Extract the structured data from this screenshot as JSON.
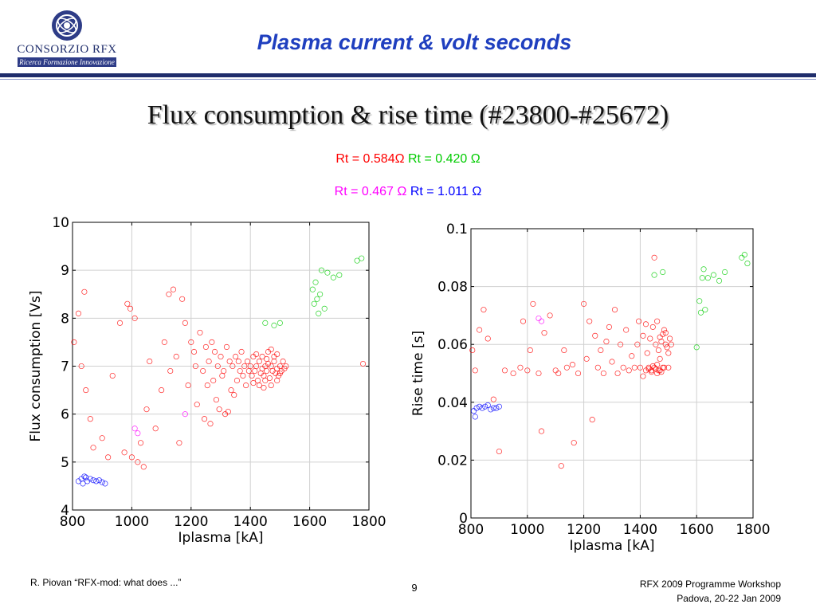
{
  "header": {
    "logo_name": "CONSORZIO RFX",
    "logo_tagline": "Ricerca Formazione Innovazione",
    "title": "Plasma current & volt seconds"
  },
  "slide_title": "Flux consumption & rise time (#23800-#25672)",
  "legend": {
    "items": [
      {
        "text": "Rt = 0.584Ω",
        "color": "#ff0000"
      },
      {
        "text": "Rt = 0.420 Ω",
        "color": "#00cc00"
      },
      {
        "text": "Rt = 0.467 Ω",
        "color": "#ff00ff"
      },
      {
        "text": "Rt = 1.011 Ω",
        "color": "#0000ff"
      }
    ]
  },
  "chart_data": [
    {
      "type": "scatter",
      "xlabel": "Iplasma [kA]",
      "ylabel": "Flux consumption [Vs]",
      "xlim": [
        800,
        1800
      ],
      "ylim": [
        4,
        10
      ],
      "xticks": [
        "800",
        "1000",
        "1200",
        "1400",
        "1600",
        "1800"
      ],
      "yticks": [
        "4",
        "5",
        "6",
        "7",
        "8",
        "9",
        "10"
      ],
      "grid": true,
      "series": [
        {
          "color": "#ff0000",
          "points": [
            [
              820,
              8.1
            ],
            [
              840,
              8.55
            ],
            [
              830,
              7.0
            ],
            [
              845,
              6.5
            ],
            [
              860,
              5.9
            ],
            [
              870,
              5.3
            ],
            [
              900,
              5.5
            ],
            [
              920,
              5.1
            ],
            [
              935,
              6.8
            ],
            [
              960,
              7.9
            ],
            [
              975,
              5.2
            ],
            [
              985,
              8.3
            ],
            [
              995,
              8.2
            ],
            [
              1000,
              5.1
            ],
            [
              1010,
              8.0
            ],
            [
              1020,
              5.0
            ],
            [
              1030,
              5.4
            ],
            [
              1040,
              4.9
            ],
            [
              1050,
              6.1
            ],
            [
              1060,
              7.1
            ],
            [
              1080,
              5.7
            ],
            [
              1100,
              6.5
            ],
            [
              1110,
              7.5
            ],
            [
              1125,
              8.5
            ],
            [
              1130,
              6.9
            ],
            [
              1140,
              8.6
            ],
            [
              1150,
              7.2
            ],
            [
              1160,
              5.4
            ],
            [
              1170,
              8.4
            ],
            [
              1180,
              7.9
            ],
            [
              1190,
              6.6
            ],
            [
              1200,
              7.5
            ],
            [
              1210,
              7.3
            ],
            [
              1215,
              7.0
            ],
            [
              1220,
              6.2
            ],
            [
              1230,
              7.7
            ],
            [
              1240,
              6.9
            ],
            [
              1245,
              5.9
            ],
            [
              1250,
              7.4
            ],
            [
              1255,
              6.6
            ],
            [
              1260,
              7.1
            ],
            [
              1265,
              5.8
            ],
            [
              1270,
              7.5
            ],
            [
              1275,
              6.7
            ],
            [
              1280,
              7.3
            ],
            [
              1285,
              6.3
            ],
            [
              1290,
              7.0
            ],
            [
              1295,
              6.1
            ],
            [
              1300,
              7.2
            ],
            [
              1305,
              6.8
            ],
            [
              1310,
              6.9
            ],
            [
              1315,
              6.0
            ],
            [
              1320,
              7.4
            ],
            [
              1325,
              6.05
            ],
            [
              1330,
              7.1
            ],
            [
              1335,
              6.5
            ],
            [
              1340,
              7.0
            ],
            [
              1345,
              6.4
            ],
            [
              1350,
              7.2
            ],
            [
              1355,
              6.7
            ],
            [
              1360,
              7.1
            ],
            [
              1365,
              6.9
            ],
            [
              1370,
              7.3
            ],
            [
              1375,
              6.8
            ],
            [
              1380,
              7.0
            ],
            [
              1385,
              6.6
            ],
            [
              1390,
              7.1
            ],
            [
              1395,
              6.9
            ],
            [
              1400,
              7.0
            ],
            [
              1405,
              6.8
            ],
            [
              1410,
              7.2
            ],
            [
              1415,
              6.9
            ],
            [
              1420,
              7.0
            ],
            [
              1425,
              6.7
            ],
            [
              1430,
              7.1
            ],
            [
              1435,
              6.85
            ],
            [
              1440,
              6.95
            ],
            [
              1445,
              6.8
            ],
            [
              1450,
              7.0
            ],
            [
              1455,
              6.9
            ],
            [
              1460,
              7.05
            ],
            [
              1465,
              6.75
            ],
            [
              1470,
              7.0
            ],
            [
              1475,
              6.9
            ],
            [
              1480,
              7.1
            ],
            [
              1485,
              6.85
            ],
            [
              1490,
              6.95
            ],
            [
              1495,
              6.8
            ],
            [
              1500,
              7.0
            ],
            [
              1505,
              6.9
            ],
            [
              1510,
              7.1
            ],
            [
              1515,
              6.95
            ],
            [
              1520,
              7.0
            ],
            [
              1440,
              7.2
            ],
            [
              1450,
              6.7
            ],
            [
              1460,
              7.3
            ],
            [
              1470,
              6.6
            ],
            [
              1480,
              7.2
            ],
            [
              1490,
              6.7
            ],
            [
              1500,
              6.85
            ],
            [
              1430,
              6.6
            ],
            [
              1420,
              7.25
            ],
            [
              1410,
              6.65
            ],
            [
              1470,
              7.35
            ],
            [
              1455,
              7.15
            ],
            [
              1445,
              6.55
            ],
            [
              1490,
              7.25
            ],
            [
              1780,
              7.05
            ],
            [
              805,
              7.5
            ]
          ]
        },
        {
          "color": "#00cc00",
          "points": [
            [
              1610,
              8.6
            ],
            [
              1615,
              8.3
            ],
            [
              1620,
              8.75
            ],
            [
              1625,
              8.4
            ],
            [
              1630,
              8.1
            ],
            [
              1635,
              8.5
            ],
            [
              1640,
              9.0
            ],
            [
              1650,
              8.2
            ],
            [
              1660,
              8.95
            ],
            [
              1680,
              8.85
            ],
            [
              1700,
              8.9
            ],
            [
              1760,
              9.2
            ],
            [
              1775,
              9.25
            ],
            [
              1450,
              7.9
            ],
            [
              1480,
              7.85
            ],
            [
              1500,
              7.9
            ]
          ]
        },
        {
          "color": "#ff00ff",
          "points": [
            [
              1180,
              6.0
            ],
            [
              1010,
              5.7
            ],
            [
              1020,
              5.6
            ]
          ]
        },
        {
          "color": "#0000ff",
          "points": [
            [
              820,
              4.6
            ],
            [
              830,
              4.65
            ],
            [
              840,
              4.7
            ],
            [
              850,
              4.6
            ],
            [
              860,
              4.65
            ],
            [
              870,
              4.62
            ],
            [
              880,
              4.6
            ],
            [
              890,
              4.62
            ],
            [
              900,
              4.58
            ],
            [
              910,
              4.55
            ],
            [
              835,
              4.55
            ],
            [
              845,
              4.68
            ]
          ]
        }
      ]
    },
    {
      "type": "scatter",
      "xlabel": "Iplasma [kA]",
      "ylabel": "Rise time [s]",
      "xlim": [
        800,
        1800
      ],
      "ylim": [
        0,
        0.1
      ],
      "xticks": [
        "800",
        "1000",
        "1200",
        "1400",
        "1600",
        "1800"
      ],
      "yticks": [
        "0",
        "0.02",
        "0.04",
        "0.06",
        "0.08",
        "0.1"
      ],
      "grid": true,
      "series": [
        {
          "color": "#ff0000",
          "points": [
            [
              805,
              0.058
            ],
            [
              815,
              0.051
            ],
            [
              830,
              0.065
            ],
            [
              845,
              0.072
            ],
            [
              860,
              0.062
            ],
            [
              880,
              0.041
            ],
            [
              900,
              0.023
            ],
            [
              920,
              0.051
            ],
            [
              950,
              0.05
            ],
            [
              975,
              0.052
            ],
            [
              985,
              0.068
            ],
            [
              1000,
              0.051
            ],
            [
              1010,
              0.058
            ],
            [
              1020,
              0.074
            ],
            [
              1040,
              0.05
            ],
            [
              1050,
              0.03
            ],
            [
              1060,
              0.064
            ],
            [
              1080,
              0.07
            ],
            [
              1100,
              0.051
            ],
            [
              1110,
              0.05
            ],
            [
              1120,
              0.018
            ],
            [
              1130,
              0.058
            ],
            [
              1140,
              0.052
            ],
            [
              1160,
              0.053
            ],
            [
              1165,
              0.026
            ],
            [
              1180,
              0.05
            ],
            [
              1200,
              0.074
            ],
            [
              1210,
              0.055
            ],
            [
              1220,
              0.068
            ],
            [
              1230,
              0.034
            ],
            [
              1240,
              0.063
            ],
            [
              1250,
              0.052
            ],
            [
              1260,
              0.058
            ],
            [
              1270,
              0.05
            ],
            [
              1280,
              0.061
            ],
            [
              1290,
              0.066
            ],
            [
              1300,
              0.054
            ],
            [
              1310,
              0.072
            ],
            [
              1320,
              0.05
            ],
            [
              1330,
              0.06
            ],
            [
              1340,
              0.052
            ],
            [
              1350,
              0.065
            ],
            [
              1360,
              0.051
            ],
            [
              1370,
              0.056
            ],
            [
              1380,
              0.052
            ],
            [
              1390,
              0.06
            ],
            [
              1400,
              0.052
            ],
            [
              1410,
              0.063
            ],
            [
              1420,
              0.051
            ],
            [
              1425,
              0.057
            ],
            [
              1430,
              0.052
            ],
            [
              1435,
              0.062
            ],
            [
              1440,
              0.051
            ],
            [
              1445,
              0.066
            ],
            [
              1450,
              0.052
            ],
            [
              1455,
              0.06
            ],
            [
              1460,
              0.053
            ],
            [
              1465,
              0.058
            ],
            [
              1470,
              0.051
            ],
            [
              1475,
              0.061
            ],
            [
              1480,
              0.052
            ],
            [
              1485,
              0.065
            ],
            [
              1490,
              0.06
            ],
            [
              1495,
              0.059
            ],
            [
              1500,
              0.052
            ],
            [
              1505,
              0.062
            ],
            [
              1510,
              0.06
            ],
            [
              1450,
              0.09
            ],
            [
              1460,
              0.068
            ],
            [
              1470,
              0.055
            ],
            [
              1440,
              0.0505
            ],
            [
              1455,
              0.0515
            ],
            [
              1465,
              0.051
            ],
            [
              1475,
              0.0505
            ],
            [
              1485,
              0.052
            ],
            [
              1430,
              0.0515
            ],
            [
              1445,
              0.0525
            ],
            [
              1460,
              0.05
            ],
            [
              1470,
              0.0625
            ],
            [
              1480,
              0.0635
            ],
            [
              1490,
              0.064
            ],
            [
              1420,
              0.067
            ],
            [
              1500,
              0.057
            ],
            [
              1410,
              0.049
            ],
            [
              1395,
              0.068
            ]
          ]
        },
        {
          "color": "#00cc00",
          "points": [
            [
              1610,
              0.075
            ],
            [
              1615,
              0.071
            ],
            [
              1620,
              0.083
            ],
            [
              1625,
              0.086
            ],
            [
              1630,
              0.072
            ],
            [
              1640,
              0.083
            ],
            [
              1660,
              0.084
            ],
            [
              1680,
              0.082
            ],
            [
              1700,
              0.085
            ],
            [
              1760,
              0.09
            ],
            [
              1770,
              0.091
            ],
            [
              1780,
              0.088
            ],
            [
              1450,
              0.084
            ],
            [
              1480,
              0.085
            ],
            [
              1600,
              0.059
            ]
          ]
        },
        {
          "color": "#ff00ff",
          "points": [
            [
              1040,
              0.069
            ],
            [
              1050,
              0.068
            ]
          ]
        },
        {
          "color": "#0000ff",
          "points": [
            [
              810,
              0.037
            ],
            [
              820,
              0.038
            ],
            [
              830,
              0.0385
            ],
            [
              840,
              0.038
            ],
            [
              850,
              0.0385
            ],
            [
              860,
              0.039
            ],
            [
              870,
              0.0375
            ],
            [
              880,
              0.038
            ],
            [
              890,
              0.038
            ],
            [
              900,
              0.0385
            ],
            [
              815,
              0.035
            ]
          ]
        }
      ]
    }
  ],
  "footer": {
    "left": "R. Piovan “RFX-mod: what does ...”",
    "page": "9",
    "right_line1": "RFX 2009 Programme Workshop",
    "right_line2": "Padova,  20-22 Jan 2009"
  }
}
